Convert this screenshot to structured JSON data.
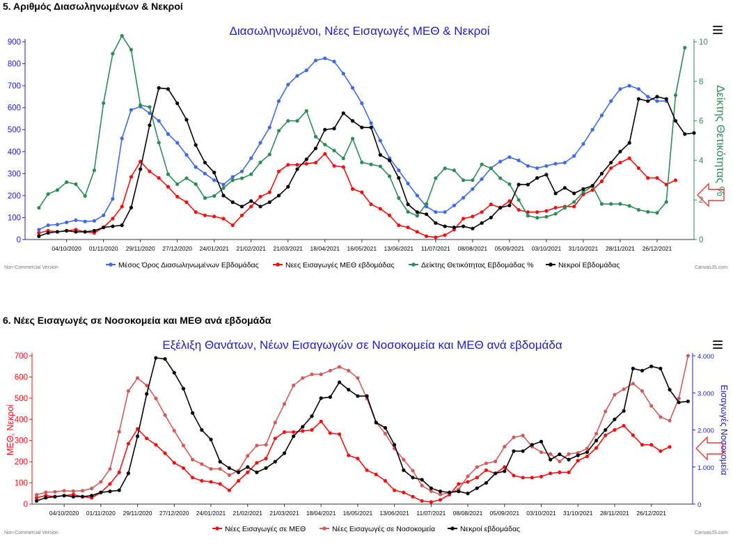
{
  "sections": [
    {
      "heading": "5. Αριθμός Διασωληνωμένων & Νεκροί"
    },
    {
      "heading": "6. Νέες Εισαγωγές σε Νοσοκομεία και ΜΕΘ ανά εβδομάδα"
    }
  ],
  "footer": {
    "watermark": "Non-Commercial Version",
    "credit": "CanvasJS.com"
  },
  "chart_data": [
    {
      "type": "line",
      "title": "Διασωληνωμένοι, Νέες Εισαγωγές ΜΕΘ & Νεκροί",
      "x_tick_labels": [
        "04/10/2020",
        "01/11/2020",
        "29/11/2020",
        "27/12/2020",
        "24/01/2021",
        "21/02/2021",
        "21/03/2021",
        "18/04/2021",
        "16/05/2021",
        "13/06/2021",
        "11/07/2021",
        "08/08/2021",
        "05/09/2021",
        "03/10/2021",
        "31/10/2021",
        "28/11/2021",
        "26/12/2021"
      ],
      "x_tick_index": [
        3,
        7,
        11,
        15,
        19,
        23,
        27,
        31,
        35,
        39,
        43,
        47,
        51,
        55,
        59,
        63,
        67
      ],
      "y_left": {
        "min": 0,
        "max": 900,
        "ticks": [
          0,
          100,
          200,
          300,
          400,
          500,
          600,
          700,
          800,
          900
        ],
        "color": "#1c1cbf"
      },
      "y_right": {
        "min": 0,
        "max": 10,
        "ticks": [
          0,
          2,
          4,
          6,
          8,
          10
        ],
        "label": "Δείκτης Θετικότητας %",
        "color": "#2e8b57"
      },
      "series": [
        {
          "name": "Μέσος Όρος Διασωληνωμένων Εβδομάδας",
          "color": "#4169e1",
          "axis": "left",
          "values": [
            45,
            65,
            68,
            78,
            88,
            82,
            85,
            110,
            185,
            460,
            590,
            605,
            575,
            540,
            480,
            440,
            385,
            330,
            300,
            270,
            250,
            285,
            310,
            370,
            440,
            510,
            630,
            705,
            745,
            770,
            815,
            825,
            810,
            755,
            690,
            620,
            530,
            450,
            370,
            315,
            255,
            200,
            150,
            125,
            125,
            155,
            190,
            230,
            275,
            325,
            355,
            375,
            360,
            335,
            325,
            335,
            345,
            350,
            380,
            435,
            500,
            565,
            630,
            685,
            700,
            685,
            650,
            630,
            630
          ]
        },
        {
          "name": "Νεες Εισαγωγές ΜΕΘ εβδομάδας",
          "color": "#ee1111",
          "axis": "left",
          "values": [
            30,
            40,
            35,
            40,
            45,
            35,
            30,
            55,
            95,
            150,
            285,
            355,
            310,
            280,
            240,
            195,
            170,
            125,
            110,
            105,
            95,
            65,
            110,
            150,
            195,
            215,
            310,
            340,
            340,
            345,
            350,
            390,
            335,
            330,
            230,
            215,
            160,
            140,
            110,
            65,
            55,
            35,
            15,
            10,
            20,
            45,
            95,
            105,
            125,
            160,
            145,
            175,
            135,
            125,
            125,
            130,
            145,
            150,
            150,
            205,
            225,
            265,
            325,
            350,
            370,
            325,
            280,
            280,
            250,
            270
          ]
        },
        {
          "name": "Δείκτης Θετικότητας Εβδομάδας %",
          "color": "#2e8b57",
          "axis": "right",
          "values": [
            1.6,
            2.3,
            2.5,
            2.9,
            2.8,
            2.2,
            3.5,
            6.9,
            9.4,
            10.3,
            9.6,
            6.8,
            6.7,
            4.9,
            3.3,
            2.8,
            3.1,
            2.8,
            2.1,
            2.2,
            2.6,
            3.0,
            3.1,
            3.3,
            3.9,
            4.3,
            5.5,
            6.0,
            6.0,
            6.5,
            5.2,
            4.8,
            4.5,
            4.1,
            5.1,
            3.9,
            3.8,
            3.7,
            3.2,
            2.1,
            1.4,
            1.2,
            1.8,
            3.1,
            3.6,
            3.5,
            3.0,
            3.0,
            3.8,
            3.6,
            3.1,
            2.8,
            2.0,
            1.2,
            1.1,
            1.15,
            1.3,
            1.6,
            1.9,
            2.4,
            2.7,
            1.8,
            1.8,
            1.8,
            1.7,
            1.5,
            1.4,
            1.35,
            1.9,
            7.3,
            9.7
          ]
        },
        {
          "name": "Νεκροί Εβδομάδας",
          "color": "#000000",
          "axis": "left",
          "values": [
            15,
            30,
            35,
            40,
            35,
            35,
            40,
            55,
            60,
            65,
            145,
            320,
            520,
            690,
            685,
            620,
            545,
            430,
            350,
            305,
            200,
            170,
            150,
            175,
            150,
            170,
            200,
            240,
            320,
            365,
            415,
            500,
            505,
            575,
            540,
            510,
            510,
            385,
            360,
            280,
            160,
            125,
            115,
            75,
            60,
            55,
            60,
            50,
            75,
            100,
            145,
            155,
            250,
            250,
            280,
            295,
            210,
            235,
            210,
            230,
            245,
            300,
            350,
            400,
            440,
            640,
            630,
            650,
            640,
            540,
            480,
            485
          ]
        }
      ],
      "legend_position": "bottom",
      "grid": false
    },
    {
      "type": "line",
      "title": "Εξέλιξη Θανάτων, Νέων Εισαγωγών σε Νοσοκομεία και ΜΕΘ ανά εβδομάδα",
      "x_tick_labels": [
        "04/10/2020",
        "01/11/2020",
        "29/11/2020",
        "27/12/2020",
        "24/01/2021",
        "21/02/2021",
        "21/03/2021",
        "18/04/2021",
        "16/05/2021",
        "13/06/2021",
        "11/07/2021",
        "08/08/2021",
        "05/09/2021",
        "03/10/2021",
        "31/10/2021",
        "28/11/2021",
        "26/12/2021"
      ],
      "x_tick_index": [
        3,
        7,
        11,
        15,
        19,
        23,
        27,
        31,
        35,
        39,
        43,
        47,
        51,
        55,
        59,
        63,
        67
      ],
      "y_left": {
        "min": 0,
        "max": 700,
        "ticks": [
          0,
          100,
          200,
          300,
          400,
          500,
          600,
          700
        ],
        "label": "ΜΕΘ, Νεκροί",
        "color": "#ee1111"
      },
      "y_right": {
        "min": 0,
        "max": 4000,
        "ticks": [
          0,
          1000,
          2000,
          3000,
          4000
        ],
        "tick_labels": [
          "0",
          "1.000",
          "2.000",
          "3.000",
          "4.000"
        ],
        "label": "Εισαγωγές Νοσοκομεία",
        "color": "#1c1cbf"
      },
      "series": [
        {
          "name": "Νέες Εισαγωγές σε ΜΕΘ",
          "color": "#ee1111",
          "axis": "left",
          "values": [
            30,
            40,
            35,
            40,
            45,
            35,
            30,
            55,
            95,
            150,
            285,
            355,
            310,
            280,
            240,
            195,
            170,
            125,
            110,
            105,
            95,
            65,
            110,
            150,
            195,
            215,
            310,
            340,
            340,
            345,
            350,
            390,
            335,
            330,
            230,
            215,
            160,
            140,
            110,
            65,
            55,
            35,
            15,
            10,
            20,
            45,
            95,
            105,
            125,
            160,
            145,
            175,
            135,
            125,
            125,
            130,
            145,
            150,
            150,
            205,
            225,
            265,
            325,
            350,
            370,
            325,
            280,
            280,
            250,
            270
          ]
        },
        {
          "name": "Νέες Εισαγωγές σε Νοσοκομεία",
          "color": "#cd5c5c",
          "axis": "right",
          "values": [
            250,
            320,
            330,
            360,
            350,
            360,
            420,
            600,
            950,
            1950,
            3050,
            3400,
            3200,
            2850,
            2400,
            1980,
            1580,
            1200,
            1080,
            950,
            950,
            780,
            900,
            1300,
            1580,
            1600,
            2200,
            2700,
            3200,
            3400,
            3500,
            3500,
            3600,
            3700,
            3600,
            3400,
            2850,
            2200,
            1900,
            1500,
            1200,
            900,
            500,
            350,
            260,
            300,
            400,
            750,
            1000,
            1100,
            1150,
            1550,
            1800,
            1850,
            1550,
            1400,
            1350,
            1150,
            1350,
            1380,
            1500,
            1900,
            2500,
            2950,
            3100,
            3250,
            3050,
            2650,
            2350,
            2250,
            2850,
            4000
          ]
        },
        {
          "name": "Νεκροί εβδομάδας",
          "color": "#000000",
          "axis": "left",
          "values": [
            15,
            30,
            35,
            40,
            35,
            35,
            40,
            55,
            60,
            65,
            145,
            320,
            520,
            690,
            685,
            620,
            545,
            430,
            350,
            305,
            200,
            170,
            150,
            175,
            150,
            170,
            200,
            240,
            320,
            365,
            415,
            500,
            505,
            575,
            540,
            510,
            510,
            385,
            360,
            280,
            160,
            125,
            115,
            75,
            60,
            55,
            60,
            50,
            75,
            100,
            145,
            155,
            250,
            250,
            280,
            295,
            210,
            235,
            210,
            230,
            245,
            300,
            350,
            400,
            440,
            640,
            630,
            650,
            640,
            540,
            480,
            485
          ]
        }
      ],
      "legend_position": "bottom",
      "grid": false
    }
  ],
  "icons": {
    "menu": "hamburger-menu-icon",
    "marker": "arrow-marker-icon"
  }
}
